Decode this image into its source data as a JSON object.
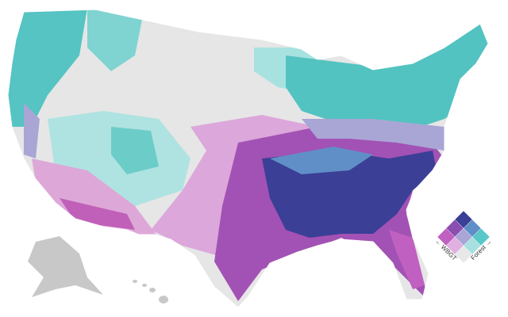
{
  "legend": {
    "y_label": "← WBGT",
    "x_label": "Forest →"
  }
}
